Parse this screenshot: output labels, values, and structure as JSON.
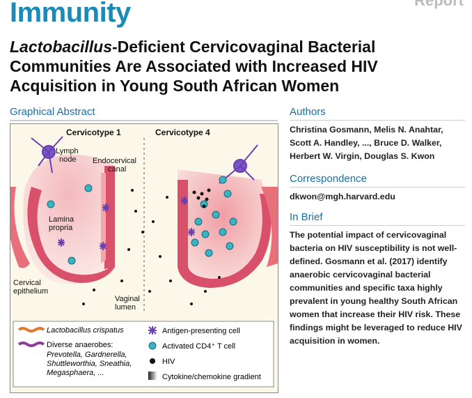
{
  "header": {
    "journal": "Immunity",
    "article_type": "Report"
  },
  "article": {
    "title_italic": "Lactobacillus",
    "title_rest": "-Deficient Cervicovaginal Bacterial Communities Are Associated with Increased HIV Acquisition in Young South African Women"
  },
  "graphical_abstract": {
    "heading": "Graphical Abstract",
    "labels": {
      "cervicotype1": "Cervicotype 1",
      "cervicotype4": "Cervicotype 4",
      "lymph_node_1": "Lymph",
      "lymph_node_2": "node",
      "endocervical_1": "Endocervical",
      "endocervical_2": "canal",
      "lamina_1": "Lamina",
      "lamina_2": "propria",
      "cervical_1": "Cervical",
      "cervical_2": "epithelium",
      "vaginal_1": "Vaginal",
      "vaginal_2": "lumen"
    },
    "legend": {
      "lacto": "Lactobacillus crispatus",
      "anaerobes": "Diverse anaerobes:",
      "anaerobes_list_1": "Prevotella, Gardnerella,",
      "anaerobes_list_2": "Shuttleworthia, Sneathia,",
      "anaerobes_list_3": "Megasphaera, ...",
      "apc": "Antigen-presenting cell",
      "tcell": "Activated CD4⁺ T cell",
      "hiv": "HIV",
      "gradient": "Cytokine/chemokine gradient"
    },
    "colors": {
      "tissue": "#e8707a",
      "epithelium": "#d8506a",
      "tcell": "#3bb3c3",
      "apc": "#6a3fb0",
      "gradient": "#f6c9c9"
    }
  },
  "authors": {
    "heading": "Authors",
    "lines": [
      "Christina Gosmann, Melis N. Anahtar,",
      "Scott A. Handley, ..., Bruce D. Walker,",
      "Herbert W. Virgin, Douglas S. Kwon"
    ]
  },
  "correspondence": {
    "heading": "Correspondence",
    "email": "dkwon@mgh.harvard.edu"
  },
  "in_brief": {
    "heading": "In Brief",
    "lines": [
      "The potential impact of cervicovaginal",
      "bacteria on HIV susceptibility is not well-",
      "defined. Gosmann et al. (2017) identify",
      "anaerobic cervicovaginal bacterial",
      "communities and specific taxa highly",
      "prevalent in young healthy South African",
      "women that increase their HIV risk. These",
      "findings might be leveraged to reduce HIV",
      "acquisition in women."
    ]
  }
}
